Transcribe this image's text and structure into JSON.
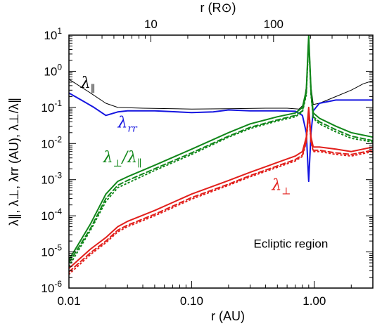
{
  "chart_data": {
    "type": "line",
    "x_scale": "log",
    "y_scale": "log",
    "xlim": [
      0.01,
      3.0
    ],
    "ylim": [
      1e-06,
      10
    ],
    "xlabel": "r (AU)",
    "x2label": "r (R⊙)",
    "ylabel": "λ∥, λ⊥, λrr (AU), λ⊥/λ∥",
    "annotation": "Ecliptic region",
    "x_ticks": [
      {
        "value": 0.01,
        "label": "0.01"
      },
      {
        "value": 0.1,
        "label": "0.10"
      },
      {
        "value": 1.0,
        "label": "1.00"
      }
    ],
    "x2_ticks": [
      {
        "value_rsun": 10,
        "label": "10"
      },
      {
        "value_rsun": 100,
        "label": "100"
      }
    ],
    "rsun_per_au": 215,
    "y_ticks": [
      {
        "value": 1e-06,
        "base": "10",
        "exp": "-6"
      },
      {
        "value": 1e-05,
        "base": "10",
        "exp": "-5"
      },
      {
        "value": 0.0001,
        "base": "10",
        "exp": "-4"
      },
      {
        "value": 0.001,
        "base": "10",
        "exp": "-3"
      },
      {
        "value": 0.01,
        "base": "10",
        "exp": "-2"
      },
      {
        "value": 0.1,
        "base": "10",
        "exp": "-1"
      },
      {
        "value": 1,
        "base": "10",
        "exp": "0"
      },
      {
        "value": 10,
        "base": "10",
        "exp": "1"
      }
    ],
    "series": [
      {
        "name": "λ∥",
        "label_main": "λ",
        "label_sub": "∥",
        "color": "#000000",
        "style": "solid",
        "width": 1,
        "points": [
          [
            0.01,
            0.6
          ],
          [
            0.015,
            0.25
          ],
          [
            0.02,
            0.13
          ],
          [
            0.025,
            0.1
          ],
          [
            0.04,
            0.095
          ],
          [
            0.1,
            0.09
          ],
          [
            0.2,
            0.092
          ],
          [
            0.4,
            0.095
          ],
          [
            0.6,
            0.095
          ],
          [
            0.75,
            0.09
          ],
          [
            0.82,
            0.12
          ],
          [
            0.87,
            0.5
          ],
          [
            0.9,
            10
          ],
          [
            0.93,
            0.5
          ],
          [
            0.98,
            0.12
          ],
          [
            1.1,
            0.13
          ],
          [
            1.5,
            0.2
          ],
          [
            2.0,
            0.3
          ],
          [
            2.5,
            0.45
          ],
          [
            3.0,
            0.55
          ]
        ]
      },
      {
        "name": "λrr",
        "label_main": "λ",
        "label_sub": "rr",
        "color": "#1515e0",
        "style": "solid",
        "width": 2,
        "points": [
          [
            0.01,
            0.25
          ],
          [
            0.013,
            0.15
          ],
          [
            0.016,
            0.1
          ],
          [
            0.02,
            0.06
          ],
          [
            0.025,
            0.075
          ],
          [
            0.03,
            0.08
          ],
          [
            0.05,
            0.08
          ],
          [
            0.1,
            0.072
          ],
          [
            0.15,
            0.075
          ],
          [
            0.2,
            0.085
          ],
          [
            0.3,
            0.08
          ],
          [
            0.5,
            0.08
          ],
          [
            0.7,
            0.078
          ],
          [
            0.8,
            0.06
          ],
          [
            0.86,
            0.02
          ],
          [
            0.9,
            0.0009
          ],
          [
            0.94,
            0.02
          ],
          [
            0.98,
            0.08
          ],
          [
            1.1,
            0.13
          ],
          [
            1.5,
            0.16
          ],
          [
            2.0,
            0.16
          ],
          [
            3.0,
            0.16
          ]
        ]
      },
      {
        "name": "λ⊥/λ∥",
        "label_main": "λ",
        "label_sub": "⊥",
        "label_tail": "/λ",
        "label_tail_sub": "∥",
        "color": "#11871a",
        "style": "solid",
        "width": 2,
        "points": [
          [
            0.01,
            6e-06
          ],
          [
            0.015,
            6e-05
          ],
          [
            0.02,
            0.0004
          ],
          [
            0.025,
            0.0009
          ],
          [
            0.03,
            0.0012
          ],
          [
            0.05,
            0.0025
          ],
          [
            0.1,
            0.007
          ],
          [
            0.2,
            0.02
          ],
          [
            0.3,
            0.035
          ],
          [
            0.5,
            0.055
          ],
          [
            0.7,
            0.07
          ],
          [
            0.8,
            0.1
          ],
          [
            0.86,
            0.3
          ],
          [
            0.9,
            10
          ],
          [
            0.94,
            0.3
          ],
          [
            0.98,
            0.07
          ],
          [
            1.1,
            0.05
          ],
          [
            1.5,
            0.03
          ],
          [
            2.0,
            0.02
          ],
          [
            3.0,
            0.015
          ]
        ]
      },
      {
        "name": "λ⊥/λ∥ (dashed)",
        "color": "#11871a",
        "style": "dashed",
        "width": 2,
        "points": [
          [
            0.01,
            5e-06
          ],
          [
            0.015,
            4.5e-05
          ],
          [
            0.02,
            0.0003
          ],
          [
            0.025,
            0.0007
          ],
          [
            0.03,
            0.00095
          ],
          [
            0.05,
            0.002
          ],
          [
            0.1,
            0.0055
          ],
          [
            0.2,
            0.016
          ],
          [
            0.3,
            0.028
          ],
          [
            0.5,
            0.045
          ],
          [
            0.7,
            0.06
          ],
          [
            0.8,
            0.08
          ],
          [
            0.86,
            0.25
          ],
          [
            0.9,
            8
          ],
          [
            0.94,
            0.25
          ],
          [
            0.98,
            0.055
          ],
          [
            1.1,
            0.04
          ],
          [
            1.5,
            0.024
          ],
          [
            2.0,
            0.016
          ],
          [
            3.0,
            0.012
          ]
        ]
      },
      {
        "name": "λ⊥/λ∥ (dotted)",
        "color": "#11871a",
        "style": "dotted",
        "width": 2,
        "points": [
          [
            0.01,
            4e-06
          ],
          [
            0.015,
            4e-05
          ],
          [
            0.02,
            0.00025
          ],
          [
            0.025,
            0.0006
          ],
          [
            0.03,
            0.0008
          ],
          [
            0.05,
            0.0018
          ],
          [
            0.1,
            0.005
          ],
          [
            0.2,
            0.015
          ],
          [
            0.3,
            0.026
          ],
          [
            0.5,
            0.042
          ],
          [
            0.7,
            0.055
          ],
          [
            0.8,
            0.075
          ],
          [
            0.86,
            0.22
          ],
          [
            0.9,
            7
          ],
          [
            0.94,
            0.22
          ],
          [
            0.98,
            0.05
          ],
          [
            1.1,
            0.035
          ],
          [
            1.5,
            0.021
          ],
          [
            2.0,
            0.014
          ],
          [
            3.0,
            0.011
          ]
        ]
      },
      {
        "name": "λ⊥",
        "label_main": "λ",
        "label_sub": "⊥",
        "color": "#e2201c",
        "style": "solid",
        "width": 2,
        "points": [
          [
            0.01,
            3.5e-06
          ],
          [
            0.015,
            1.2e-05
          ],
          [
            0.02,
            2.5e-05
          ],
          [
            0.025,
            5e-05
          ],
          [
            0.03,
            7e-05
          ],
          [
            0.05,
            0.00014
          ],
          [
            0.1,
            0.0004
          ],
          [
            0.2,
            0.00095
          ],
          [
            0.3,
            0.0016
          ],
          [
            0.5,
            0.003
          ],
          [
            0.7,
            0.0045
          ],
          [
            0.8,
            0.006
          ],
          [
            0.86,
            0.015
          ],
          [
            0.9,
            0.1
          ],
          [
            0.94,
            0.015
          ],
          [
            0.98,
            0.008
          ],
          [
            1.1,
            0.008
          ],
          [
            1.5,
            0.007
          ],
          [
            2.0,
            0.006
          ],
          [
            3.0,
            0.008
          ]
        ]
      },
      {
        "name": "λ⊥ (dashed)",
        "color": "#e2201c",
        "style": "dashed",
        "width": 2,
        "points": [
          [
            0.01,
            2.8e-06
          ],
          [
            0.015,
            9.5e-06
          ],
          [
            0.02,
            2e-05
          ],
          [
            0.025,
            4e-05
          ],
          [
            0.03,
            5.5e-05
          ],
          [
            0.05,
            0.00011
          ],
          [
            0.1,
            0.00032
          ],
          [
            0.2,
            0.00075
          ],
          [
            0.3,
            0.0013
          ],
          [
            0.5,
            0.0024
          ],
          [
            0.7,
            0.0036
          ],
          [
            0.8,
            0.0048
          ],
          [
            0.86,
            0.012
          ],
          [
            0.9,
            0.08
          ],
          [
            0.94,
            0.012
          ],
          [
            0.98,
            0.0065
          ],
          [
            1.1,
            0.0065
          ],
          [
            1.5,
            0.0055
          ],
          [
            2.0,
            0.005
          ],
          [
            3.0,
            0.0065
          ]
        ]
      },
      {
        "name": "λ⊥ (dotted)",
        "color": "#e2201c",
        "style": "dotted",
        "width": 2,
        "points": [
          [
            0.01,
            2.4e-06
          ],
          [
            0.015,
            8.5e-06
          ],
          [
            0.02,
            1.8e-05
          ],
          [
            0.025,
            3.6e-05
          ],
          [
            0.03,
            5e-05
          ],
          [
            0.05,
            0.0001
          ],
          [
            0.1,
            0.00029
          ],
          [
            0.2,
            0.0007
          ],
          [
            0.3,
            0.0012
          ],
          [
            0.5,
            0.0022
          ],
          [
            0.7,
            0.0033
          ],
          [
            0.8,
            0.0044
          ],
          [
            0.86,
            0.011
          ],
          [
            0.9,
            0.07
          ],
          [
            0.94,
            0.011
          ],
          [
            0.98,
            0.006
          ],
          [
            1.1,
            0.006
          ],
          [
            1.5,
            0.005
          ],
          [
            2.0,
            0.0045
          ],
          [
            3.0,
            0.006
          ]
        ]
      }
    ]
  }
}
